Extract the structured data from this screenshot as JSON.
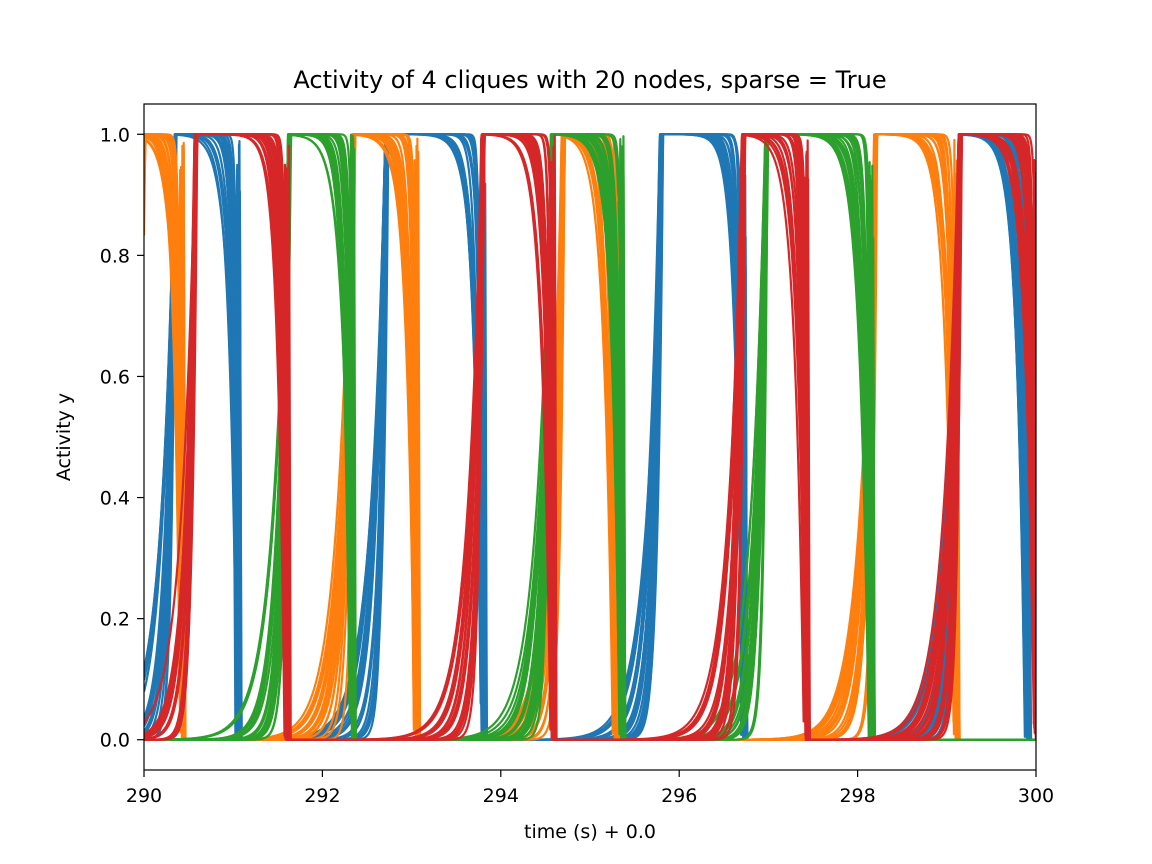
{
  "chart_data": {
    "type": "line",
    "title": "Activity of 4 cliques with 20 nodes, sparse = True",
    "xlabel": "time (s) + 0.0",
    "ylabel": "Activity y",
    "xlim": [
      290,
      300
    ],
    "ylim": [
      -0.05,
      1.05
    ],
    "xticks": [
      290,
      292,
      294,
      296,
      298,
      300
    ],
    "xtick_labels": [
      "290",
      "292",
      "294",
      "296",
      "298",
      "300"
    ],
    "yticks": [
      0.0,
      0.2,
      0.4,
      0.6,
      0.8,
      1.0
    ],
    "ytick_labels": [
      "0.0",
      "0.2",
      "0.4",
      "0.6",
      "0.8",
      "1.0"
    ],
    "grid": false,
    "legend": "none",
    "nodes_per_clique": 20,
    "series": [
      {
        "color": "#1f77b4",
        "high_intervals": [
          [
            290.35,
            291.05
          ],
          [
            292.72,
            293.8
          ],
          [
            295.8,
            296.72
          ],
          [
            299.15,
            299.9
          ]
        ]
      },
      {
        "color": "#ff7f0e",
        "high_intervals": [
          [
            290.0,
            290.42
          ],
          [
            292.35,
            293.05
          ],
          [
            294.7,
            295.28
          ],
          [
            298.2,
            299.1
          ]
        ]
      },
      {
        "color": "#2ca02c",
        "high_intervals": [
          [
            291.63,
            292.33
          ],
          [
            294.58,
            295.35
          ],
          [
            296.98,
            298.15
          ]
        ]
      },
      {
        "color": "#d62728",
        "high_intervals": [
          [
            290.58,
            291.6
          ],
          [
            293.8,
            294.58
          ],
          [
            296.72,
            297.42
          ],
          [
            299.15,
            300.0
          ]
        ]
      }
    ]
  }
}
